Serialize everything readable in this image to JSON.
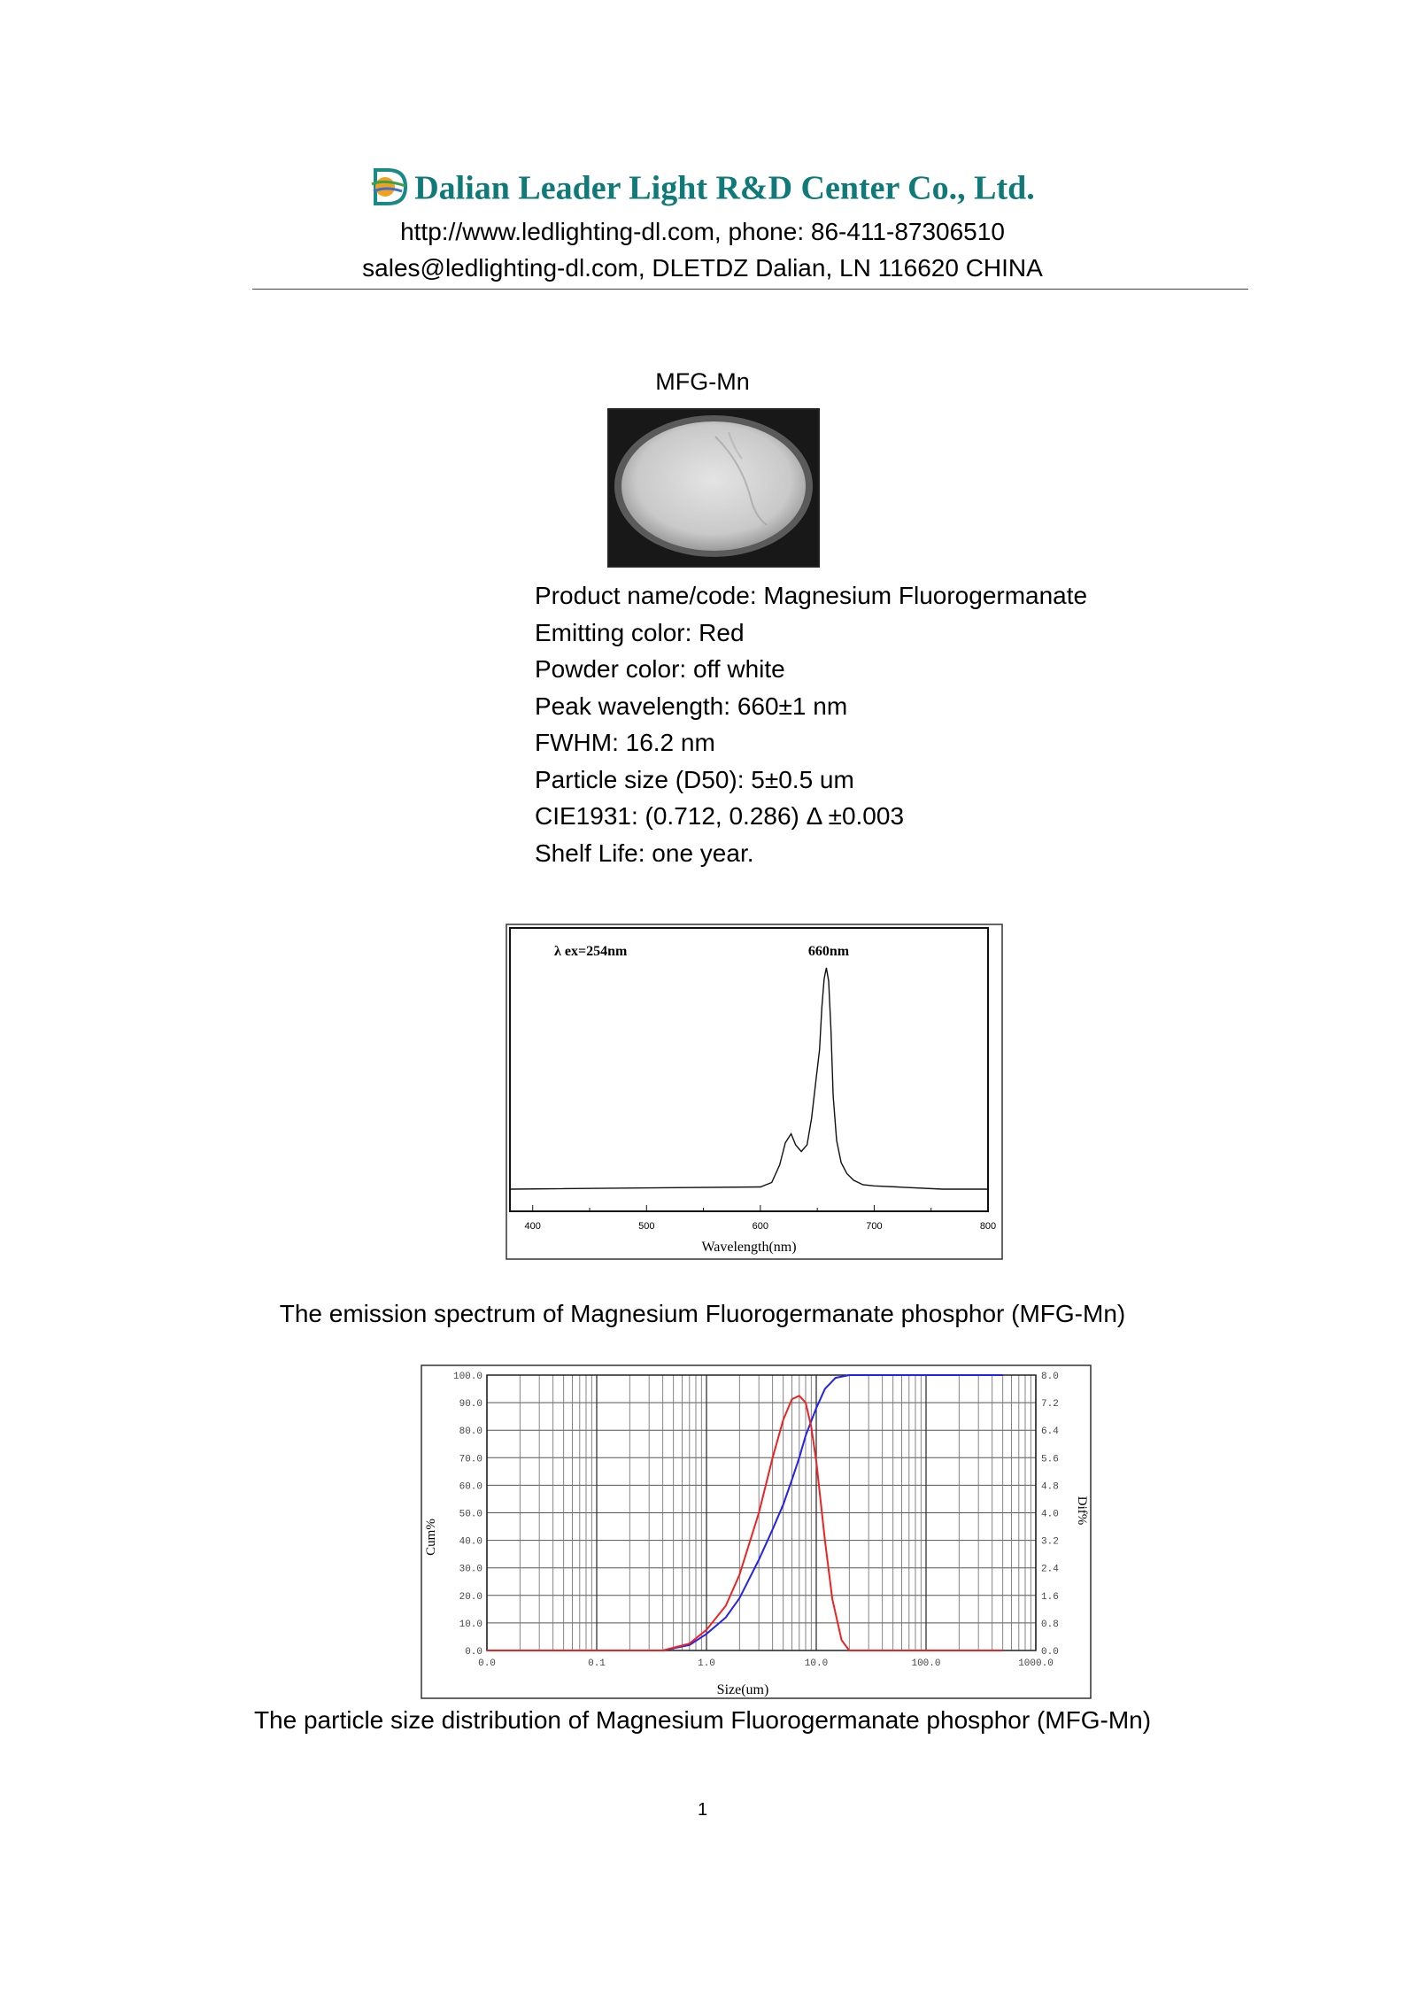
{
  "header": {
    "company": "Dalian Leader Light R&D Center Co., Ltd.",
    "contact_line1": "http://www.ledlighting-dl.com, phone: 86-411-87306510",
    "contact_line2": "sales@ledlighting-dl.com, DLETDZ Dalian, LN 116620 CHINA"
  },
  "product": {
    "code": "MFG-Mn",
    "photo": "powder-sample-photo",
    "specs": [
      "Product name/code: Magnesium Fluorogermanate",
      "Emitting color: Red",
      "Powder color: off white",
      "Peak wavelength: 660±1 nm",
      "FWHM: 16.2 nm",
      "Particle size (D50): 5±0.5 um",
      "CIE1931: (0.712, 0.286)   Δ ±0.003",
      "Shelf Life: one year."
    ]
  },
  "chart_data": [
    {
      "type": "line",
      "title": "",
      "annotations": [
        "λ  ex=254nm",
        "660nm"
      ],
      "xlabel": "Wavelength(nm)",
      "ylabel": "",
      "xlim": [
        380,
        800
      ],
      "ylim": [
        0,
        1
      ],
      "xticks": [
        "400",
        "500",
        "600",
        "700",
        "800"
      ],
      "series": [
        {
          "name": "emission",
          "x": [
            380,
            600,
            610,
            617,
            622,
            627,
            631,
            636,
            641,
            645,
            649,
            652,
            654,
            656,
            658,
            660,
            662,
            664,
            667,
            671,
            676,
            682,
            690,
            700,
            720,
            760,
            800
          ],
          "y": [
            0.0,
            0.01,
            0.03,
            0.11,
            0.21,
            0.25,
            0.2,
            0.17,
            0.2,
            0.32,
            0.5,
            0.63,
            0.82,
            0.95,
            1.0,
            0.94,
            0.72,
            0.42,
            0.22,
            0.12,
            0.07,
            0.04,
            0.02,
            0.015,
            0.01,
            0.0,
            0.0
          ]
        }
      ],
      "caption": "The emission spectrum of Magnesium Fluorogermanate phosphor (MFG-Mn)"
    },
    {
      "type": "line",
      "title": "",
      "xlabel": "Size(um)",
      "ylabel": "Cum%",
      "y2label": "Dif%",
      "xscale": "log",
      "xlim": [
        0.01,
        1000
      ],
      "ylim": [
        0,
        100
      ],
      "y2lim": [
        0,
        8
      ],
      "xticks": [
        "0.0",
        "0.1",
        "1.0",
        "10.0",
        "100.0",
        "1000.0"
      ],
      "yticks": [
        "0.0",
        "10.0",
        "20.0",
        "30.0",
        "40.0",
        "50.0",
        "60.0",
        "70.0",
        "80.0",
        "90.0",
        "100.0"
      ],
      "y2ticks": [
        "0.0",
        "0.8",
        "1.6",
        "2.4",
        "3.2",
        "4.0",
        "4.8",
        "5.6",
        "6.4",
        "7.2",
        "8.0"
      ],
      "series": [
        {
          "name": "Cum%",
          "color": "#2222ee",
          "axis": "left",
          "x": [
            0.01,
            0.4,
            0.7,
            1.0,
            1.5,
            2.0,
            3.0,
            4.0,
            5.0,
            6.0,
            7.0,
            8.0,
            10.0,
            12.0,
            15.0,
            20.0,
            500.0
          ],
          "y": [
            0,
            0,
            2,
            6,
            12,
            19,
            33,
            44,
            53,
            62,
            70,
            78,
            88,
            95,
            99,
            100,
            100
          ]
        },
        {
          "name": "Dif%",
          "color": "#ee2222",
          "axis": "right",
          "x": [
            0.01,
            0.4,
            0.7,
            1.0,
            1.5,
            2.0,
            3.0,
            4.0,
            5.0,
            6.0,
            7.0,
            8.0,
            9.0,
            10.0,
            12.0,
            14.0,
            17.0,
            20.0,
            500.0
          ],
          "y": [
            0,
            0,
            0.2,
            0.6,
            1.3,
            2.2,
            4.0,
            5.6,
            6.7,
            7.3,
            7.4,
            7.2,
            6.5,
            5.5,
            3.2,
            1.5,
            0.3,
            0,
            0
          ]
        }
      ],
      "caption": "The particle size distribution of Magnesium Fluorogermanate phosphor (MFG-Mn)"
    }
  ],
  "footer": {
    "page_number": "1"
  }
}
